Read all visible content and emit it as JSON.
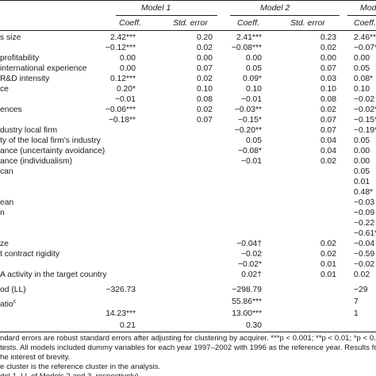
{
  "header": {
    "models": [
      "Model 1",
      "Model 2",
      "Mod"
    ],
    "columns": [
      "Coeff.",
      "Std. error",
      "Coeff.",
      "Std. error",
      "Coeff."
    ]
  },
  "rows": [
    {
      "label": "s size",
      "m1c": "2.42***",
      "m1s": "0.20",
      "m2c": "2.41***",
      "m2s": "0.23",
      "m3c": "2.46***"
    },
    {
      "label": "",
      "m1c": "−0.12***",
      "m1s": "0.02",
      "m2c": "−0.08***",
      "m2s": "0.02",
      "m3c": "−0.07**"
    },
    {
      "label": "profitability",
      "m1c": "0.00",
      "m1s": "0.00",
      "m2c": "0.00",
      "m2s": "0.00",
      "m3c": "0.00"
    },
    {
      "label": "international experience",
      "m1c": "0.00",
      "m1s": "0.07",
      "m2c": "0.05",
      "m2s": "0.07",
      "m3c": "0.05"
    },
    {
      "label": "R&D intensity",
      "m1c": "0.12***",
      "m1s": "0.02",
      "m2c": "0.09*",
      "m2s": "0.03",
      "m3c": "0.08*"
    },
    {
      "label": "ce",
      "m1c": "0.20*",
      "m1s": "0.10",
      "m2c": "0.10",
      "m2s": "0.10",
      "m3c": "0.10"
    },
    {
      "label": "",
      "m1c": "−0.01",
      "m1s": "0.08",
      "m2c": "−0.01",
      "m2s": "0.08",
      "m3c": "−0.02"
    },
    {
      "label": "ences",
      "m1c": "−0.06***",
      "m1s": "0.02",
      "m2c": "−0.03**",
      "m2s": "0.02",
      "m3c": "−0.02*"
    },
    {
      "label": "",
      "m1c": "−0.18**",
      "m1s": "0.07",
      "m2c": "−0.15*",
      "m2s": "0.07",
      "m3c": "−0.15*"
    },
    {
      "label": "dustry local firm",
      "m1c": "",
      "m1s": "",
      "m2c": "−0.20**",
      "m2s": "0.07",
      "m3c": "−0.19**"
    },
    {
      "label": "ty of the local firm’s industry",
      "m1c": "",
      "m1s": "",
      "m2c": "0.05",
      "m2s": "0.04",
      "m3c": "0.05"
    },
    {
      "label": "ance (uncertainty avoidance)",
      "m1c": "",
      "m1s": "",
      "m2c": "−0.08*",
      "m2s": "0.04",
      "m3c": "0.00"
    },
    {
      "label": "ance (individualism)",
      "m1c": "",
      "m1s": "",
      "m2c": "−0.01",
      "m2s": "0.02",
      "m3c": "0.00"
    },
    {
      "label": "can",
      "m1c": "",
      "m1s": "",
      "m2c": "",
      "m2s": "",
      "m3c": "0.05"
    },
    {
      "label": "",
      "m1c": "",
      "m1s": "",
      "m2c": "",
      "m2s": "",
      "m3c": "0.01"
    },
    {
      "label": "",
      "m1c": "",
      "m1s": "",
      "m2c": "",
      "m2s": "",
      "m3c": "0.48*"
    },
    {
      "label": "ean",
      "m1c": "",
      "m1s": "",
      "m2c": "",
      "m2s": "",
      "m3c": "−0.03"
    },
    {
      "label": "n",
      "m1c": "",
      "m1s": "",
      "m2c": "",
      "m2s": "",
      "m3c": "−0.09"
    },
    {
      "label": "",
      "m1c": "",
      "m1s": "",
      "m2c": "",
      "m2s": "",
      "m3c": "−0.22"
    },
    {
      "label": "",
      "m1c": "",
      "m1s": "",
      "m2c": "",
      "m2s": "",
      "m3c": "−0.61**"
    },
    {
      "label": "ze",
      "m1c": "",
      "m1s": "",
      "m2c": "−0.04†",
      "m2s": "0.02",
      "m3c": "−0.04"
    },
    {
      "label": "t contract rigidity",
      "m1c": "",
      "m1s": "",
      "m2c": "−0.02",
      "m2s": "0.02",
      "m3c": "−0.59"
    },
    {
      "label": "",
      "m1c": "",
      "m1s": "",
      "m2c": "−0.02*",
      "m2s": "0.01",
      "m3c": "−0.02"
    },
    {
      "label": "A activity in the target country",
      "m1c": "",
      "m1s": "",
      "m2c": "0.02†",
      "m2s": "0.01",
      "m3c": "0.02"
    }
  ],
  "stats": [
    {
      "label": "od (LL)",
      "m1c": "−326.73",
      "m1s": "",
      "m2c": "−298.79",
      "m2s": "",
      "m3c": "−29"
    },
    {
      "label": "atio",
      "sup": "c",
      "m1c": "",
      "m1s": "",
      "m2c": "55.86***",
      "m2s": "",
      "m3c": "7"
    },
    {
      "label": "",
      "m1c": "14.23***",
      "m1s": "",
      "m2c": "13.00***",
      "m2s": "",
      "m3c": "1"
    },
    {
      "label": "",
      "m1c": "0.21",
      "m1s": "",
      "m2c": "0.30",
      "m2s": "",
      "m3c": ""
    }
  ],
  "notes": [
    "ndard errors are robust standard errors after adjusting for clustering by acquirer. ***p < 0.001; **p < 0.01; *p < 0.05; †p < 0.1",
    "tests. All models included dummy variables for each year 1997–2002 with 1996 as the reference year. Results for year dum",
    "he interest of brevity.",
    "e cluster is the reference cluster in the analysis.",
    "del 1–LL of Models 2 and 3, respectively)."
  ]
}
